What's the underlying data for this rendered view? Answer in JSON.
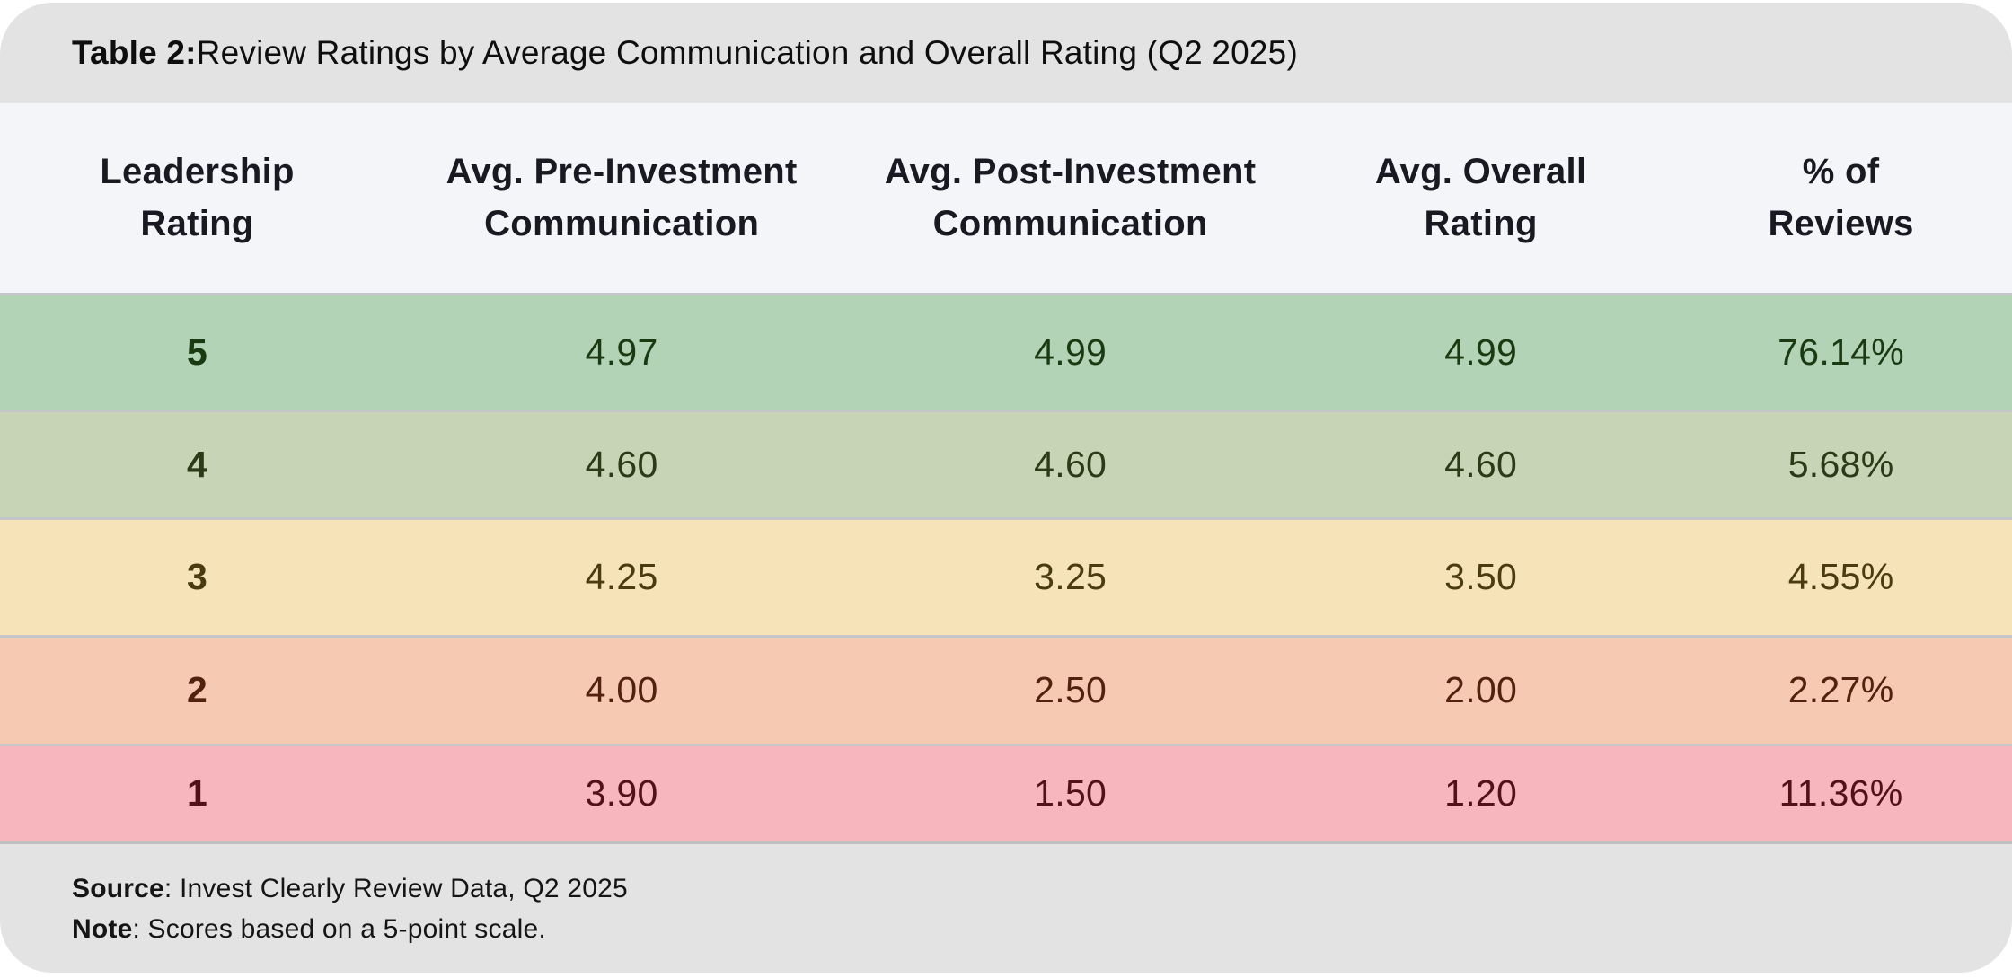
{
  "title": {
    "label": "Table 2:",
    "text": " Review Ratings by Average Communication and Overall Rating (Q2 2025)"
  },
  "chart_data": {
    "type": "table",
    "title": "Table 2: Review Ratings by Average Communication and Overall Rating (Q2 2025)",
    "columns": [
      "Leadership Rating",
      "Avg. Pre-Investment Communication",
      "Avg. Post-Investment Communication",
      "Avg. Overall Rating",
      "% of Reviews"
    ],
    "rows": [
      [
        "5",
        "4.97",
        "4.99",
        "4.99",
        "76.14%"
      ],
      [
        "4",
        "4.60",
        "4.60",
        "4.60",
        "5.68%"
      ],
      [
        "3",
        "4.25",
        "3.25",
        "3.50",
        "4.55%"
      ],
      [
        "2",
        "4.00",
        "2.50",
        "2.00",
        "2.27%"
      ],
      [
        "1",
        "3.90",
        "1.50",
        "1.20",
        "11.36%"
      ]
    ],
    "source": "Invest Clearly Review Data, Q2 2025",
    "note": "Scores based on a 5-point scale.",
    "layout": {
      "legend": "none",
      "grid": "row-separators",
      "row_color_scale": "green-to-red by rating"
    }
  },
  "header_lines": [
    [
      "Leadership",
      "Rating"
    ],
    [
      "Avg. Pre-Investment",
      "Communication"
    ],
    [
      "Avg. Post-Investment",
      "Communication"
    ],
    [
      "Avg. Overall",
      "Rating"
    ],
    [
      "% of",
      "Reviews"
    ]
  ],
  "row_styles": [
    {
      "bg": "#b2d3b6",
      "text": "#1b3a12"
    },
    {
      "bg": "#c7d4b6",
      "text": "#2b3a17"
    },
    {
      "bg": "#f6e3b8",
      "text": "#4a3b10"
    },
    {
      "bg": "#f6cab2",
      "text": "#52220f"
    },
    {
      "bg": "#f7b6bd",
      "text": "#541018"
    }
  ],
  "footer": {
    "source_label": "Source",
    "source_text": ": Invest Clearly Review Data, Q2 2025",
    "note_label": "Note",
    "note_text": ": Scores based on a 5-point scale."
  },
  "colors": {
    "bar_bg": "#e3e3e3",
    "header_row_bg": "#f4f5f9",
    "header_text": "#191922",
    "separator": "#c5c6cb",
    "page_bg": "#ffffff"
  }
}
